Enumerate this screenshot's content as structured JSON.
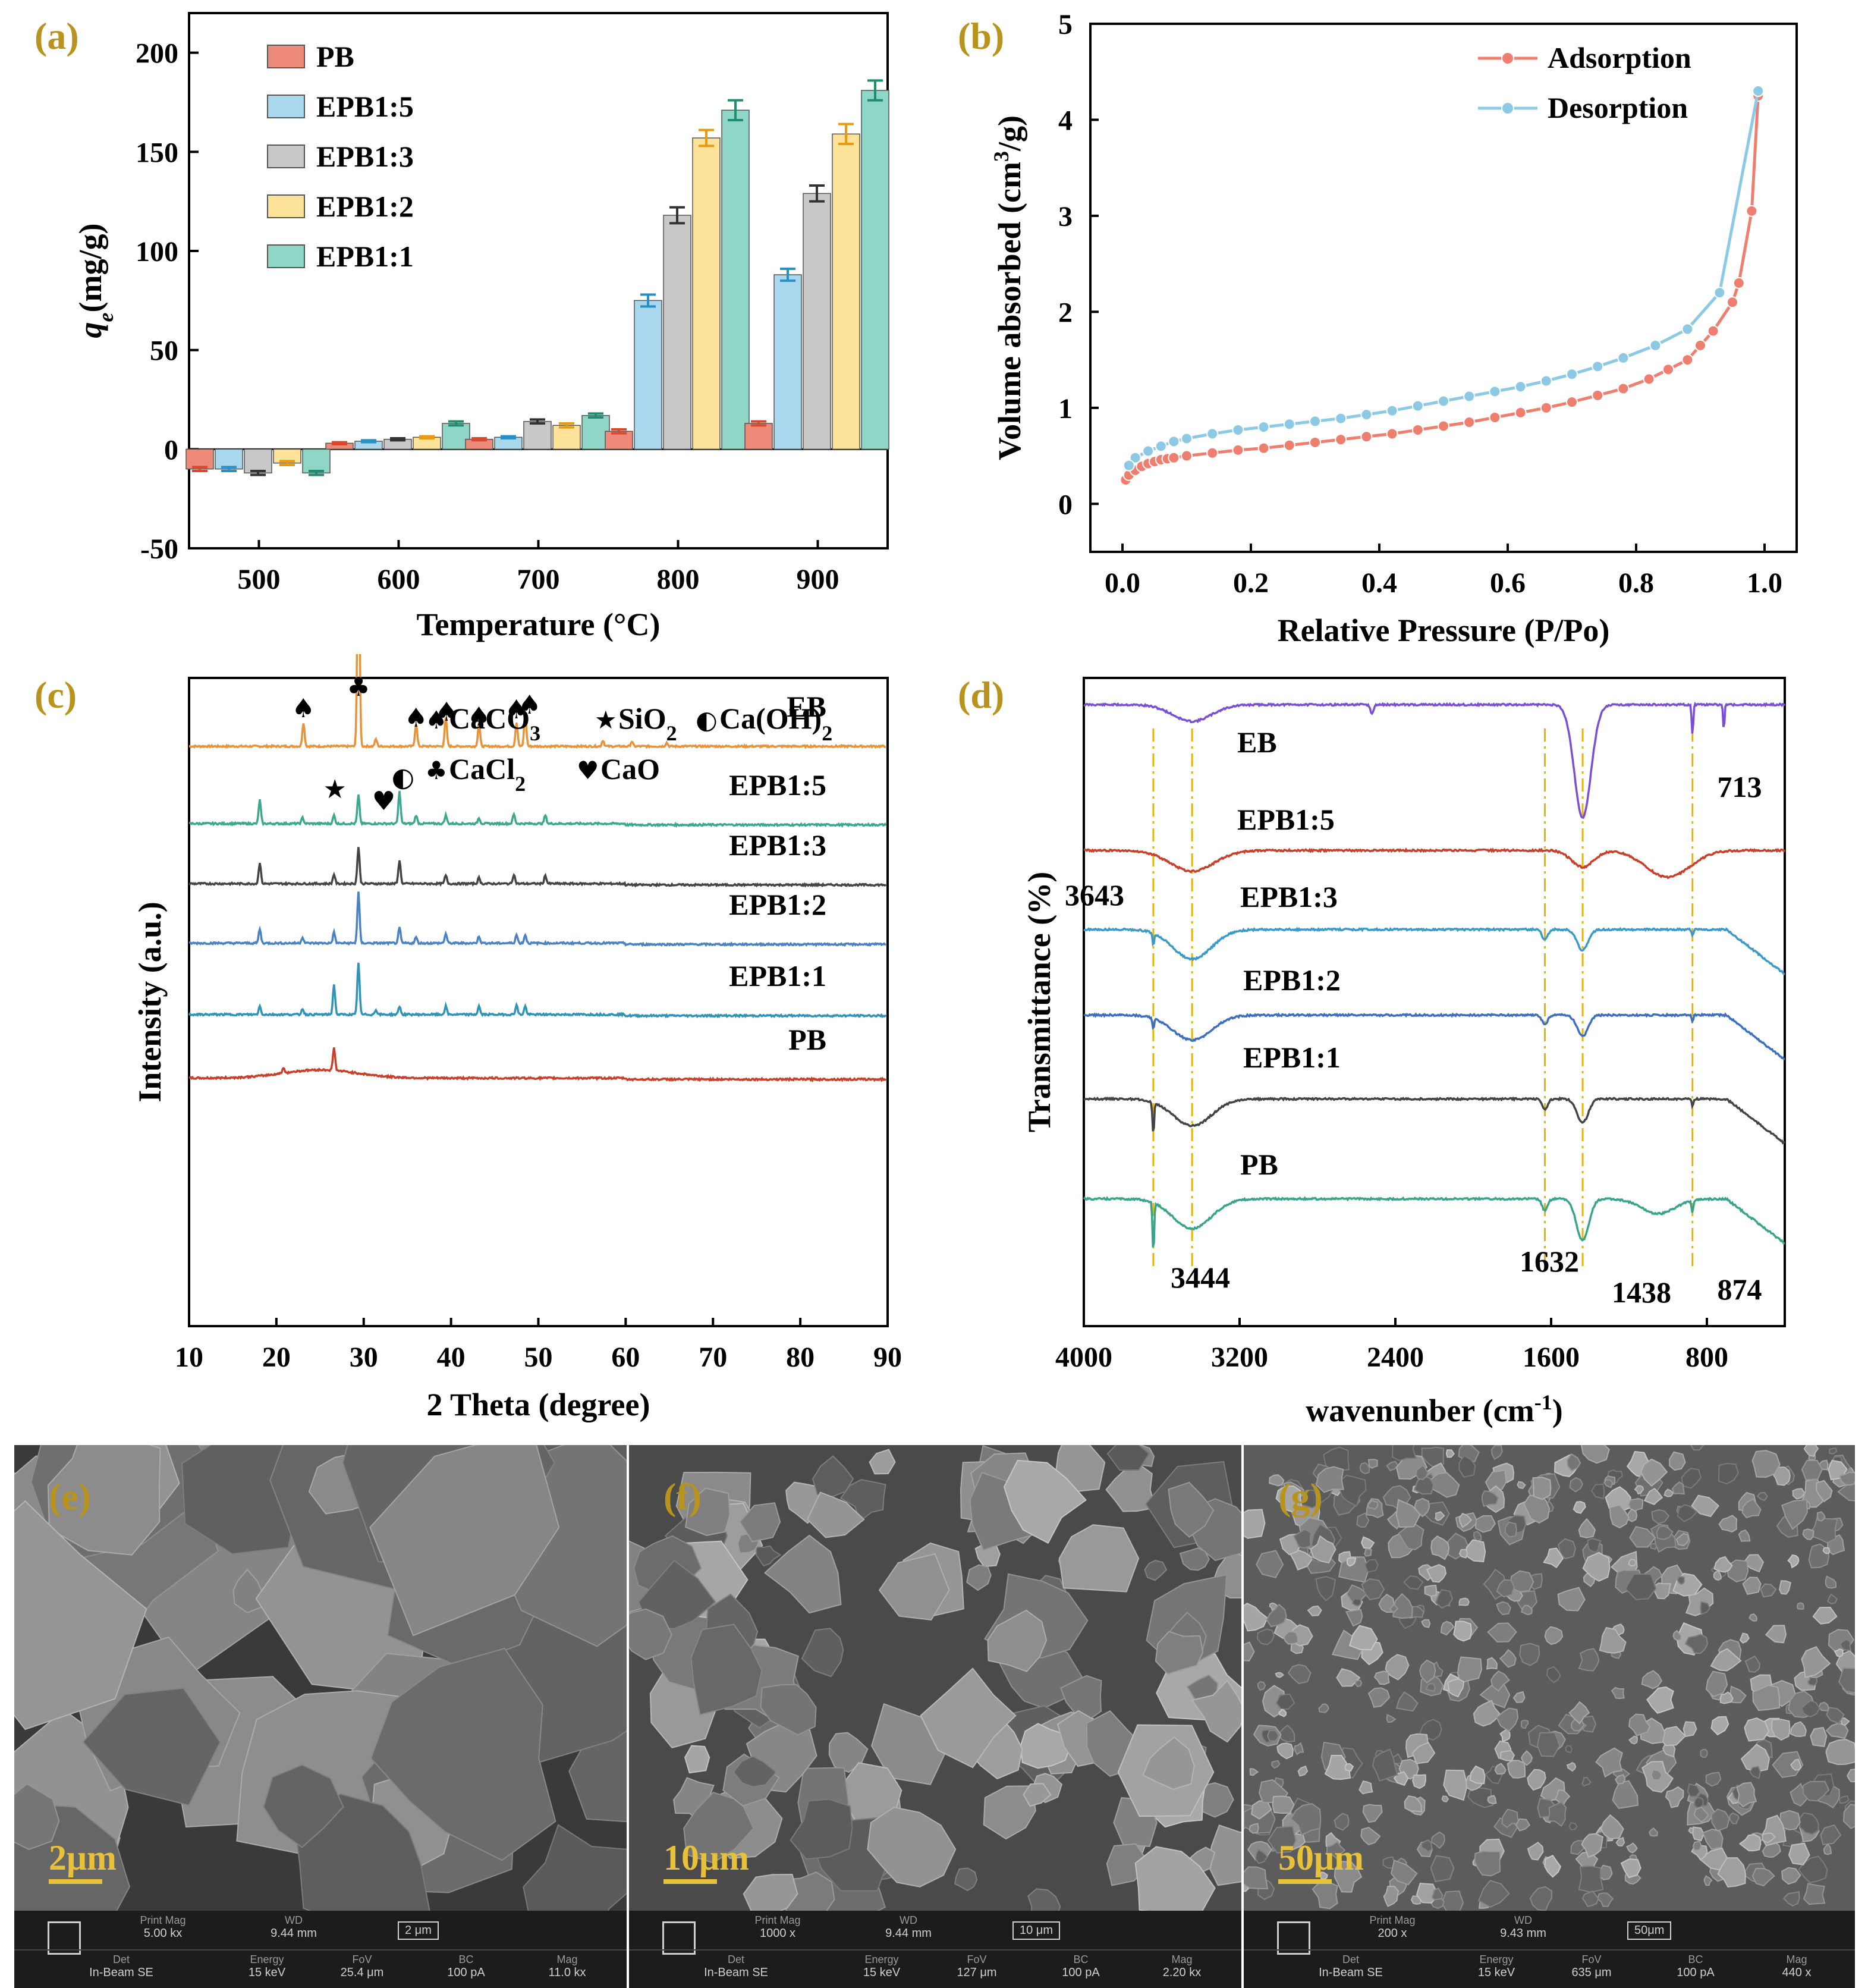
{
  "panels": {
    "a": "(a)",
    "b": "(b)",
    "c": "(c)",
    "d": "(d)",
    "e": "(e)",
    "f": "(f)",
    "g": "(g)"
  },
  "chart_data": [
    {
      "id": "a",
      "type": "bar",
      "ylabel_q": "q",
      "ylabel_sub": "e",
      "ylabel_rest": "(mg/g)",
      "xlabel": "Temperature (°C)",
      "ylim": [
        -50,
        220
      ],
      "yticks": [
        "200",
        "150",
        "100",
        "50",
        "0",
        "-50"
      ],
      "categories": [
        "500",
        "600",
        "700",
        "800",
        "900"
      ],
      "series": [
        {
          "name": "PB",
          "color": "#ee8a7a",
          "values": [
            -10,
            3,
            5,
            9,
            13
          ],
          "errors": [
            1,
            0.5,
            0.5,
            1,
            1
          ]
        },
        {
          "name": "EPB1:5",
          "color": "#a9d8ee",
          "values": [
            -10,
            4,
            6,
            75,
            88
          ],
          "errors": [
            1,
            0.5,
            0.5,
            3,
            3
          ]
        },
        {
          "name": "EPB1:3",
          "color": "#c8c8c8",
          "values": [
            -12,
            5,
            14,
            118,
            129
          ],
          "errors": [
            1,
            0.5,
            1,
            4,
            4
          ]
        },
        {
          "name": "EPB1:2",
          "color": "#fde29a",
          "values": [
            -7,
            6,
            12,
            157,
            159
          ],
          "errors": [
            1,
            0.5,
            1,
            4,
            5
          ]
        },
        {
          "name": "EPB1:1",
          "color": "#8fd6c6",
          "values": [
            -12,
            13,
            17,
            171,
            181
          ],
          "errors": [
            1,
            1,
            1,
            5,
            5
          ]
        }
      ]
    },
    {
      "id": "b",
      "type": "line",
      "ylabel": "Volume absorbed (cm",
      "ylabel_sup": "3",
      "ylabel_end": "/g)",
      "xlabel": "Relative Pressure (P/Po)",
      "xlim": [
        -0.05,
        1.05
      ],
      "ylim": [
        -0.5,
        5
      ],
      "xticks": [
        "0.0",
        "0.2",
        "0.4",
        "0.6",
        "0.8",
        "1.0"
      ],
      "yticks": [
        "0",
        "1",
        "2",
        "3",
        "4",
        "5"
      ],
      "series": [
        {
          "name": "Adsorption",
          "color": "#ee7f6e",
          "x": [
            0.005,
            0.01,
            0.02,
            0.03,
            0.04,
            0.05,
            0.06,
            0.07,
            0.08,
            0.1,
            0.14,
            0.18,
            0.22,
            0.26,
            0.3,
            0.34,
            0.38,
            0.42,
            0.46,
            0.5,
            0.54,
            0.58,
            0.62,
            0.66,
            0.7,
            0.74,
            0.78,
            0.82,
            0.85,
            0.88,
            0.9,
            0.92,
            0.95,
            0.96,
            0.98,
            0.99
          ],
          "y": [
            0.25,
            0.3,
            0.35,
            0.39,
            0.42,
            0.44,
            0.46,
            0.47,
            0.48,
            0.5,
            0.53,
            0.56,
            0.58,
            0.61,
            0.64,
            0.67,
            0.7,
            0.73,
            0.77,
            0.81,
            0.85,
            0.9,
            0.95,
            1.0,
            1.06,
            1.13,
            1.2,
            1.3,
            1.4,
            1.5,
            1.65,
            1.8,
            2.1,
            2.3,
            3.05,
            4.25
          ]
        },
        {
          "name": "Desorption",
          "color": "#8cc9e4",
          "x": [
            0.99,
            0.93,
            0.88,
            0.83,
            0.78,
            0.74,
            0.7,
            0.66,
            0.62,
            0.58,
            0.54,
            0.5,
            0.46,
            0.42,
            0.38,
            0.34,
            0.3,
            0.26,
            0.22,
            0.18,
            0.14,
            0.1,
            0.08,
            0.06,
            0.04,
            0.02,
            0.01
          ],
          "y": [
            4.3,
            2.2,
            1.82,
            1.65,
            1.52,
            1.43,
            1.35,
            1.28,
            1.22,
            1.17,
            1.12,
            1.07,
            1.02,
            0.97,
            0.93,
            0.89,
            0.86,
            0.83,
            0.8,
            0.77,
            0.73,
            0.68,
            0.65,
            0.6,
            0.55,
            0.48,
            0.4
          ]
        }
      ]
    },
    {
      "id": "c",
      "type": "line",
      "ylabel": "Intensity (a.u.)",
      "xlabel": "2 Theta (degree)",
      "xlim": [
        10,
        90
      ],
      "xticks": [
        "10",
        "20",
        "30",
        "40",
        "50",
        "60",
        "70",
        "80",
        "90"
      ],
      "series": [
        {
          "name": "EB",
          "color": "#e8923a",
          "offset": 1255,
          "peaks": [
            [
              23.1,
              40
            ],
            [
              29.4,
              400
            ],
            [
              31.4,
              12
            ],
            [
              36,
              38
            ],
            [
              39.4,
              48
            ],
            [
              43.2,
              38
            ],
            [
              47.5,
              40
            ],
            [
              48.5,
              56
            ],
            [
              57.4,
              10
            ],
            [
              60.7,
              8
            ],
            [
              64.7,
              6
            ]
          ]
        },
        {
          "name": "EPB1:5",
          "color": "#3ea88f",
          "offset": 1387,
          "peaks": [
            [
              18.1,
              40
            ],
            [
              23,
              10
            ],
            [
              26.6,
              14
            ],
            [
              29.4,
              48
            ],
            [
              34.1,
              54
            ],
            [
              36,
              14
            ],
            [
              39.4,
              14
            ],
            [
              43.2,
              10
            ],
            [
              47.2,
              16
            ],
            [
              50.8,
              14
            ]
          ]
        },
        {
          "name": "EPB1:3",
          "color": "#444444",
          "offset": 1488,
          "peaks": [
            [
              18.1,
              36
            ],
            [
              26.6,
              16
            ],
            [
              29.4,
              62
            ],
            [
              34.1,
              40
            ],
            [
              39.4,
              14
            ],
            [
              43.2,
              10
            ],
            [
              47.2,
              16
            ],
            [
              50.8,
              14
            ]
          ]
        },
        {
          "name": "EPB1:2",
          "color": "#4a82c2",
          "offset": 1588,
          "peaks": [
            [
              18.1,
              24
            ],
            [
              23,
              10
            ],
            [
              26.6,
              18
            ],
            [
              29.4,
              86
            ],
            [
              34.1,
              26
            ],
            [
              36,
              10
            ],
            [
              39.4,
              16
            ],
            [
              43.2,
              12
            ],
            [
              47.5,
              14
            ],
            [
              48.5,
              14
            ]
          ]
        },
        {
          "name": "EPB1:1",
          "color": "#2f94b8",
          "offset": 1708,
          "peaks": [
            [
              18.1,
              14
            ],
            [
              23,
              10
            ],
            [
              26.6,
              50
            ],
            [
              29.4,
              88
            ],
            [
              31.4,
              8
            ],
            [
              34.1,
              14
            ],
            [
              39.4,
              14
            ],
            [
              43.2,
              14
            ],
            [
              47.5,
              16
            ],
            [
              48.5,
              14
            ]
          ]
        },
        {
          "name": "PB",
          "color": "#c9402a",
          "offset": 1815,
          "hump": true,
          "peaks": [
            [
              26.6,
              38
            ],
            [
              20.8,
              8
            ]
          ]
        }
      ],
      "legend": [
        {
          "sym": "♠",
          "text": "CaCO",
          "sub": "3"
        },
        {
          "sym": "★",
          "text": "SiO",
          "sub": "2"
        },
        {
          "sym": "◐",
          "text": "Ca(OH)",
          "sub": "2"
        },
        {
          "sym": "♣",
          "text": "CaCl",
          "sub": "2"
        },
        {
          "sym": "♥",
          "text": "CaO",
          "sub": ""
        }
      ]
    },
    {
      "id": "d",
      "type": "line",
      "ylabel": "Transmittance (%)",
      "xlabel": "wavenunber (cm",
      "xlabel_sup": "-1",
      "xlabel_end": ")",
      "xlim": [
        4000,
        400
      ],
      "xticks": [
        "4000",
        "3200",
        "2400",
        "1600",
        "800"
      ],
      "peak_labels": [
        "3643",
        "3444",
        "1632",
        "1438",
        "874",
        "713"
      ],
      "series": [
        {
          "name": "EB",
          "color": "#7a4fd6",
          "offset": 1185
        },
        {
          "name": "EPB1:5",
          "color": "#c9402a",
          "offset": 1430
        },
        {
          "name": "EPB1:3",
          "color": "#3a9ac8",
          "offset": 1563
        },
        {
          "name": "EPB1:2",
          "color": "#3e6fbf",
          "offset": 1707
        },
        {
          "name": "EPB1:1",
          "color": "#444444",
          "offset": 1848
        },
        {
          "name": "PB",
          "color": "#38a58a",
          "offset": 2016
        }
      ]
    }
  ],
  "sem": [
    {
      "id": "e",
      "label": "(e)",
      "scale": "2μm",
      "print_mag_k": "Print Mag",
      "print_mag": "5.00 kx",
      "wd_k": "WD",
      "wd": "9.44 mm",
      "bar": "2 μm",
      "det_k": "Det",
      "det": "In-Beam SE",
      "energy_k": "Energy",
      "energy": "15 keV",
      "fov_k": "FoV",
      "fov": "25.4 μm",
      "bc_k": "BC",
      "bc": "100 pA",
      "mag_k": "Mag",
      "mag": "11.0 kx"
    },
    {
      "id": "f",
      "label": "(f)",
      "scale": "10μm",
      "print_mag_k": "Print Mag",
      "print_mag": "1000 x",
      "wd_k": "WD",
      "wd": "9.44 mm",
      "bar": "10 μm",
      "det_k": "Det",
      "det": "In-Beam SE",
      "energy_k": "Energy",
      "energy": "15 keV",
      "fov_k": "FoV",
      "fov": "127 μm",
      "bc_k": "BC",
      "bc": "100 pA",
      "mag_k": "Mag",
      "mag": "2.20 kx"
    },
    {
      "id": "g",
      "label": "(g)",
      "scale": "50μm",
      "print_mag_k": "Print Mag",
      "print_mag": "200 x",
      "wd_k": "WD",
      "wd": "9.43 mm",
      "bar": "50μm",
      "det_k": "Det",
      "det": "In-Beam SE",
      "energy_k": "Energy",
      "energy": "15 keV",
      "fov_k": "FoV",
      "fov": "635 μm",
      "bc_k": "BC",
      "bc": "100 pA",
      "mag_k": "Mag",
      "mag": "440 x"
    }
  ],
  "colors": {
    "label": "#b8941e",
    "scalebar": "#e7c13a",
    "guide": "#e8b400"
  }
}
